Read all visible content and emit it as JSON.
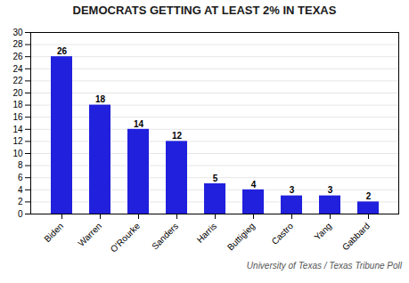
{
  "chart_data": {
    "type": "bar",
    "title": "DEMOCRATS GETTING AT LEAST 2% IN TEXAS",
    "categories": [
      "Biden",
      "Warren",
      "O'Rourke",
      "Sanders",
      "Harris",
      "Buttigieg",
      "Castro",
      "Yang",
      "Gabbard"
    ],
    "values": [
      26,
      18,
      14,
      12,
      5,
      4,
      3,
      3,
      2
    ],
    "color": "#2020dd",
    "ylim": [
      0,
      30
    ],
    "yticks": [
      0,
      2,
      4,
      6,
      8,
      10,
      12,
      14,
      16,
      18,
      20,
      22,
      24,
      26,
      28,
      30
    ],
    "grid": true,
    "data_labels": true,
    "annotations": [
      "University of Texas / Texas Tribune Poll"
    ]
  }
}
